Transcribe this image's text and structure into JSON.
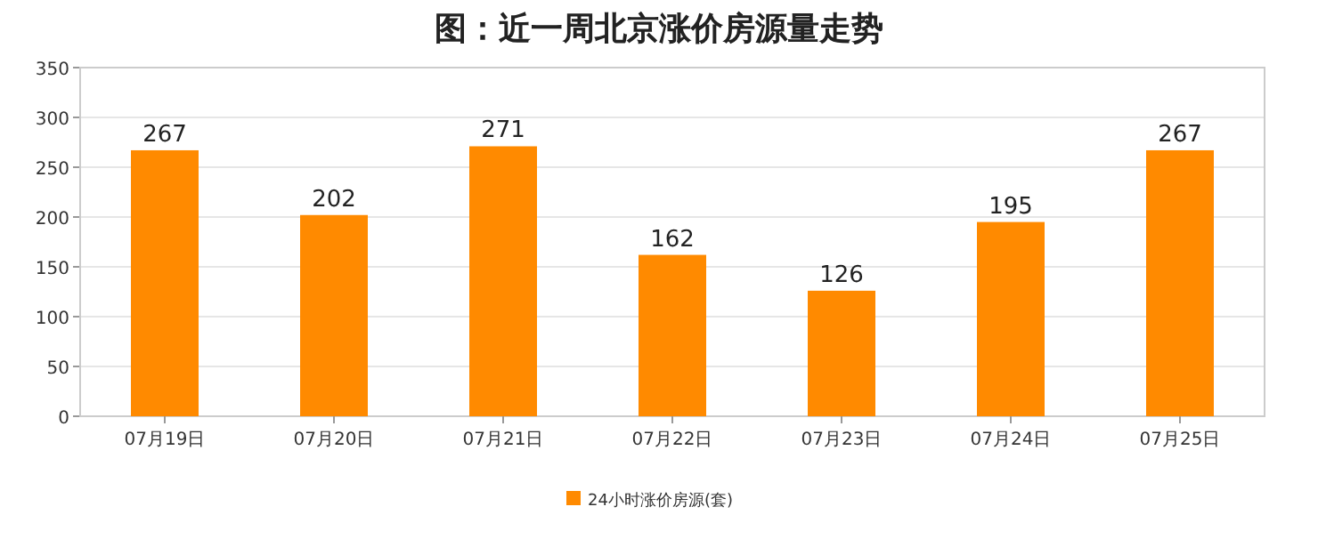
{
  "chart_data": {
    "type": "bar",
    "title": "图：近一周北京涨价房源量走势",
    "categories": [
      "07月19日",
      "07月20日",
      "07月21日",
      "07月22日",
      "07月23日",
      "07月24日",
      "07月25日"
    ],
    "series": [
      {
        "name": "24小时涨价房源(套)",
        "color": "#ff8a00",
        "values": [
          267,
          202,
          271,
          162,
          126,
          195,
          267
        ]
      }
    ],
    "ylim": [
      0,
      350
    ],
    "yticks": [
      0,
      50,
      100,
      150,
      200,
      250,
      300,
      350
    ],
    "grid": "y",
    "legend": "bottom",
    "data_labels": true
  }
}
